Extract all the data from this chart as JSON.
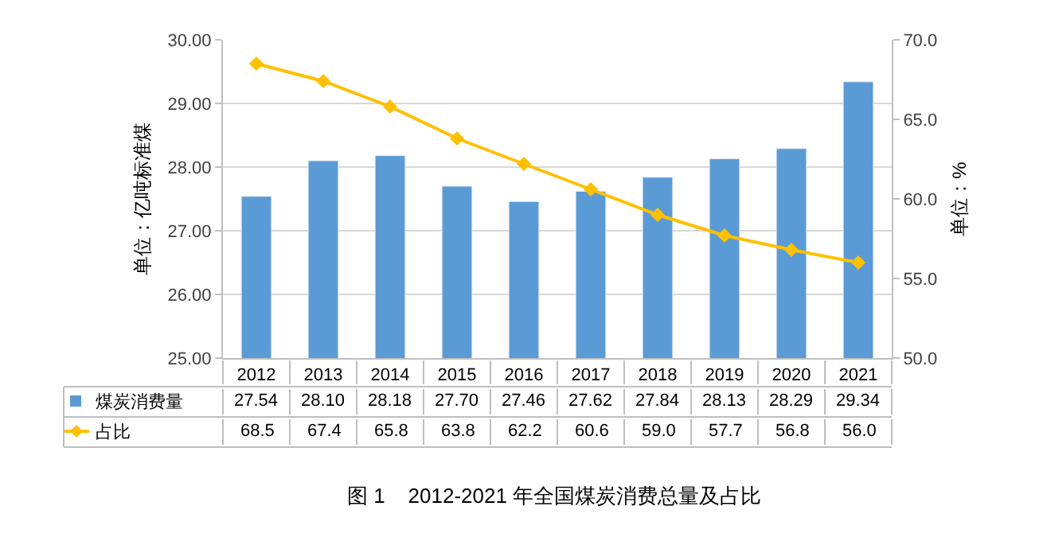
{
  "chart_data": {
    "type": "bar",
    "categories": [
      "2012",
      "2013",
      "2014",
      "2015",
      "2016",
      "2017",
      "2018",
      "2019",
      "2020",
      "2021"
    ],
    "series": [
      {
        "name": "煤炭消费量",
        "color": "#5b9bd5",
        "values": [
          27.54,
          28.1,
          28.18,
          27.7,
          27.46,
          27.62,
          27.84,
          28.13,
          28.29,
          29.34
        ],
        "value_labels": [
          "27.54",
          "28.10",
          "28.18",
          "27.70",
          "27.46",
          "27.62",
          "27.84",
          "28.13",
          "28.29",
          "29.34"
        ]
      },
      {
        "name": "占比",
        "type": "line",
        "axis": "y2",
        "color": "#ffc000",
        "marker": "diamond",
        "values": [
          68.5,
          67.4,
          65.8,
          63.8,
          62.2,
          60.6,
          59.0,
          57.7,
          56.8,
          56.0
        ],
        "value_labels": [
          "68.5",
          "67.4",
          "65.8",
          "63.8",
          "62.2",
          "60.6",
          "59.0",
          "57.7",
          "56.8",
          "56.0"
        ]
      }
    ],
    "ylabel": "单位：亿吨标准煤",
    "y2label": "单位：%",
    "ylim": [
      25,
      30
    ],
    "yticks": [
      {
        "value": 25,
        "label": "25.00"
      },
      {
        "value": 26,
        "label": "26.00"
      },
      {
        "value": 27,
        "label": "27.00"
      },
      {
        "value": 28,
        "label": "28.00"
      },
      {
        "value": 29,
        "label": "29.00"
      },
      {
        "value": 30,
        "label": "30.00"
      }
    ],
    "y2lim": [
      50,
      70
    ],
    "y2ticks": [
      {
        "value": 50,
        "label": "50.0"
      },
      {
        "value": 55,
        "label": "55.0"
      },
      {
        "value": 60,
        "label": "60.0"
      },
      {
        "value": 65,
        "label": "65.0"
      },
      {
        "value": 70,
        "label": "70.0"
      }
    ],
    "grid": "y",
    "legend": "bottom left",
    "annotations": [
      "图 1    2012-2021 年全国煤炭消费总量及占比"
    ]
  }
}
